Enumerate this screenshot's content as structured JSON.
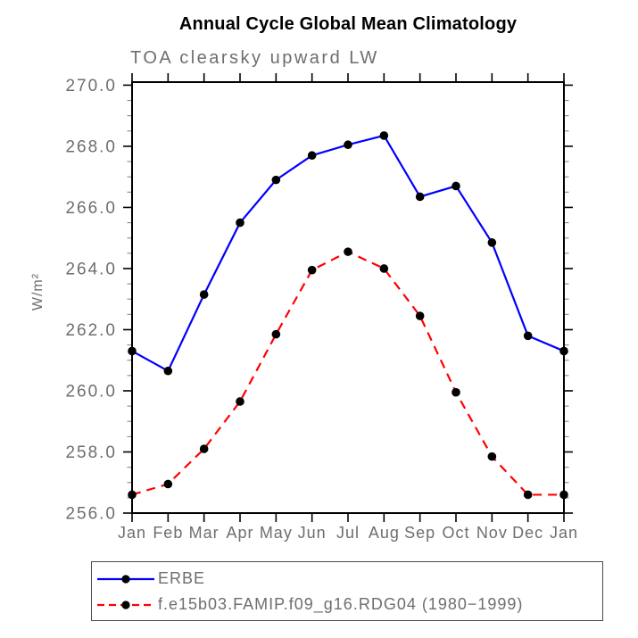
{
  "page": {
    "background_color": "#ffffff"
  },
  "chart_data": {
    "type": "line",
    "title": "Annual Cycle Global Mean Climatology",
    "subtitle": "TOA clearsky upward LW",
    "ylabel": "W/m²",
    "xlabel": "",
    "categories": [
      "Jan",
      "Feb",
      "Mar",
      "Apr",
      "May",
      "Jun",
      "Jul",
      "Aug",
      "Sep",
      "Oct",
      "Nov",
      "Dec",
      "Jan"
    ],
    "series": [
      {
        "name": "ERBE",
        "color": "#0000ff",
        "line_style": "solid",
        "marker": "filled-circle",
        "marker_color": "#000000",
        "values": [
          261.3,
          260.65,
          263.15,
          265.5,
          266.9,
          267.7,
          268.05,
          268.35,
          266.35,
          266.7,
          264.85,
          261.8,
          261.3
        ]
      },
      {
        "name": "f.e15b03.FAMIP.f09_g16.RDG04 (1980−1999)",
        "color": "#ff0000",
        "line_style": "dashed",
        "marker": "filled-circle",
        "marker_color": "#000000",
        "values": [
          256.6,
          256.95,
          258.1,
          259.65,
          261.85,
          263.95,
          264.55,
          264.0,
          262.45,
          259.95,
          257.85,
          256.6,
          256.6
        ]
      }
    ],
    "ylim": [
      256.0,
      270.1
    ],
    "ytick_major_step": 2.0,
    "ytick_minor_step": 0.5,
    "ytick_format_decimals": 1,
    "ytick_labels": [
      "256.0",
      "258.0",
      "260.0",
      "262.0",
      "264.0",
      "266.0",
      "268.0",
      "270.0"
    ],
    "grid": false,
    "legend_position": "bottom-left",
    "axis_color": "#000000",
    "tick_label_color": "#6e6e6e"
  }
}
